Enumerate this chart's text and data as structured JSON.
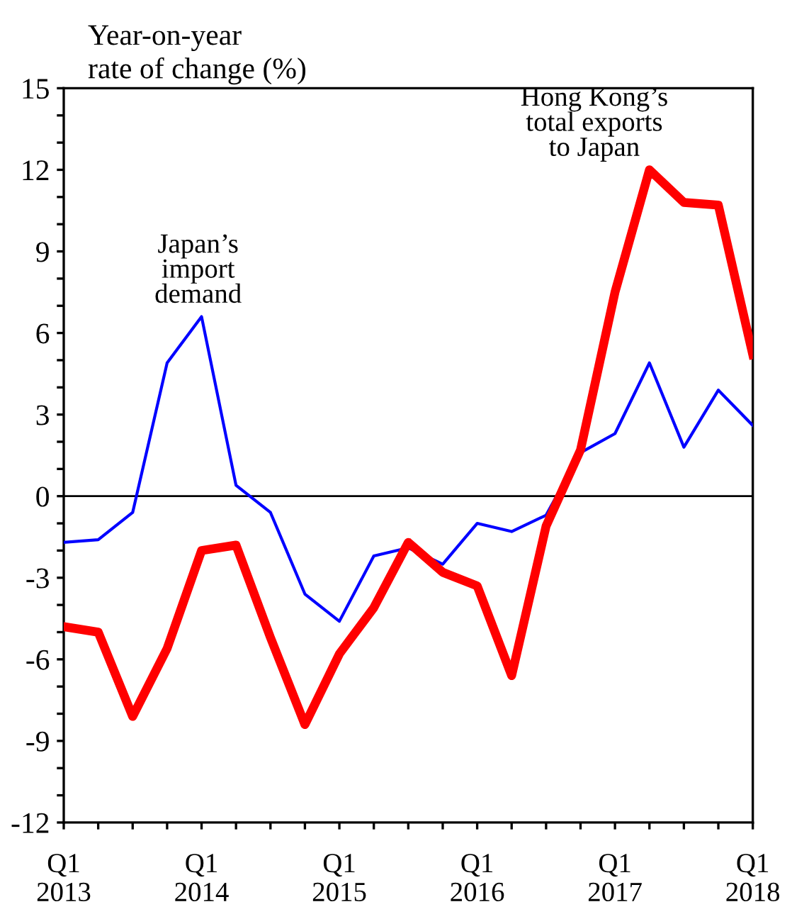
{
  "chart_data": {
    "type": "line",
    "ylabel": "Year-on-year\nrate of change (%)",
    "categories": [
      "Q1\n2013",
      null,
      null,
      null,
      "Q1\n2014",
      null,
      null,
      null,
      "Q1\n2015",
      null,
      null,
      null,
      "Q1\n2016",
      null,
      null,
      null,
      "Q1\n2017",
      null,
      null,
      null,
      "Q1\n2018"
    ],
    "series": [
      {
        "name": "Hong Kong’s\ntotal exports\nto Japan",
        "color": "#ff0000",
        "values": [
          -4.8,
          -5.0,
          -8.1,
          -5.6,
          -2.0,
          -1.8,
          -5.2,
          -8.4,
          -5.8,
          -4.1,
          -1.7,
          -2.8,
          -3.3,
          -6.6,
          -1.1,
          1.7,
          7.5,
          12.0,
          10.8,
          10.7,
          5.2
        ]
      },
      {
        "name": "Japan’s\nimport\ndemand",
        "color": "#0000ff",
        "values": [
          -1.7,
          -1.6,
          -0.6,
          4.9,
          6.6,
          0.4,
          -0.6,
          -3.6,
          -4.6,
          -2.2,
          -1.9,
          -2.5,
          -1.0,
          -1.3,
          -0.7,
          1.6,
          2.3,
          4.9,
          1.8,
          3.9,
          2.6
        ]
      }
    ],
    "ylim": [
      -12,
      15
    ],
    "yticks": [
      -12,
      {
        "value": -11,
        "label": null
      },
      {
        "value": -10,
        "label": null
      },
      -9,
      {
        "value": -8,
        "label": null
      },
      {
        "value": -7,
        "label": null
      },
      -6,
      {
        "value": -5,
        "label": null
      },
      {
        "value": -4,
        "label": null
      },
      -3,
      {
        "value": -2,
        "label": null
      },
      {
        "value": -1,
        "label": null
      },
      0,
      {
        "value": 1,
        "label": null
      },
      {
        "value": 2,
        "label": null
      },
      3,
      {
        "value": 4,
        "label": null
      },
      {
        "value": 5,
        "label": null
      },
      6,
      {
        "value": 7,
        "label": null
      },
      {
        "value": 8,
        "label": null
      },
      9,
      {
        "value": 10,
        "label": null
      },
      {
        "value": 11,
        "label": null
      },
      12,
      {
        "value": 13,
        "label": null
      },
      {
        "value": 14,
        "label": null
      },
      15
    ],
    "ref_lines": [
      {
        "axis": "y",
        "value": 0,
        "color": "#000000"
      }
    ],
    "grid": false,
    "legend": false,
    "marker": "none",
    "line_style": "solid"
  }
}
